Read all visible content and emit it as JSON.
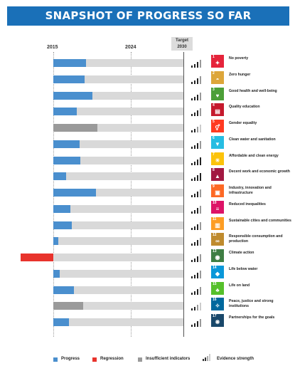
{
  "title": "SNAPSHOT OF PROGRESS SO FAR",
  "years": {
    "start": "2015",
    "mid": "2024"
  },
  "target": {
    "line1": "Target",
    "line2": "2030"
  },
  "colors": {
    "progress": "#4a8fce",
    "regression": "#e8332c",
    "insufficient": "#9a9a9a",
    "track": "#d9d9d9",
    "header": "#1a70b8"
  },
  "legend": {
    "progress": "Progress",
    "regression": "Regression",
    "insufficient": "Insufficient indicators",
    "evidence": "Evidence strength"
  },
  "chart_data": {
    "type": "bar",
    "title": "SNAPSHOT OF PROGRESS SO FAR",
    "x_scale": {
      "start_label": "2015",
      "mid_label": "2024",
      "target_label": "Target 2030"
    },
    "units": "fraction of progress toward 2030 target (0 = 2015, 1 = target)",
    "goals": [
      {
        "num": "1",
        "label": "No poverty",
        "status": "progress",
        "value": 0.25,
        "strength": 2,
        "color": "#e5243b",
        "icon": "family-icon"
      },
      {
        "num": "2",
        "label": "Zero hunger",
        "status": "progress",
        "value": 0.24,
        "strength": 2,
        "color": "#dda63a",
        "icon": "bowl-icon"
      },
      {
        "num": "3",
        "label": "Good health and well-being",
        "status": "progress",
        "value": 0.3,
        "strength": 2,
        "color": "#4c9f38",
        "icon": "heartbeat-icon"
      },
      {
        "num": "4",
        "label": "Quality education",
        "status": "progress",
        "value": 0.18,
        "strength": 2,
        "color": "#c5192d",
        "icon": "book-icon"
      },
      {
        "num": "5",
        "label": "Gender equality",
        "status": "insufficient",
        "value": 0.34,
        "strength": 1,
        "color": "#ff3a21",
        "icon": "gender-icon"
      },
      {
        "num": "6",
        "label": "Clean water and sanitation",
        "status": "progress",
        "value": 0.2,
        "strength": 2,
        "color": "#26bde2",
        "icon": "water-icon"
      },
      {
        "num": "7",
        "label": "Affordable and clean energy",
        "status": "progress",
        "value": 0.21,
        "strength": 4,
        "color": "#fcc30b",
        "icon": "sun-icon"
      },
      {
        "num": "8",
        "label": "Decent work and economic growth",
        "status": "progress",
        "value": 0.1,
        "strength": 3,
        "color": "#a21942",
        "icon": "growth-chart-icon"
      },
      {
        "num": "9",
        "label": "Industry, innovation and infrastructure",
        "status": "progress",
        "value": 0.33,
        "strength": 2,
        "color": "#fd6925",
        "icon": "cubes-icon"
      },
      {
        "num": "10",
        "label": "Reduced inequalities",
        "status": "progress",
        "value": 0.13,
        "strength": 2,
        "color": "#dd1367",
        "icon": "equal-icon"
      },
      {
        "num": "11",
        "label": "Sustainable cities and communities",
        "status": "progress",
        "value": 0.14,
        "strength": 2,
        "color": "#fd9d24",
        "icon": "city-icon"
      },
      {
        "num": "12",
        "label": "Responsible consumption and production",
        "status": "progress",
        "value": 0.04,
        "strength": 2,
        "color": "#bf8b2e",
        "icon": "infinity-icon"
      },
      {
        "num": "13",
        "label": "Climate action",
        "status": "regression",
        "value": -0.25,
        "strength": 2,
        "color": "#3f7e44",
        "icon": "eye-icon"
      },
      {
        "num": "14",
        "label": "Life below water",
        "status": "progress",
        "value": 0.05,
        "strength": 2,
        "color": "#0a97d9",
        "icon": "fish-icon"
      },
      {
        "num": "15",
        "label": "Life on land",
        "status": "progress",
        "value": 0.16,
        "strength": 2,
        "color": "#56c02b",
        "icon": "tree-icon"
      },
      {
        "num": "16",
        "label": "Peace, justice and strong institutions",
        "status": "insufficient",
        "value": 0.23,
        "strength": 1,
        "color": "#00689d",
        "icon": "dove-icon"
      },
      {
        "num": "17",
        "label": "Partnerships for the goals",
        "status": "progress",
        "value": 0.12,
        "strength": 2,
        "color": "#19486a",
        "icon": "partnership-icon"
      }
    ]
  }
}
